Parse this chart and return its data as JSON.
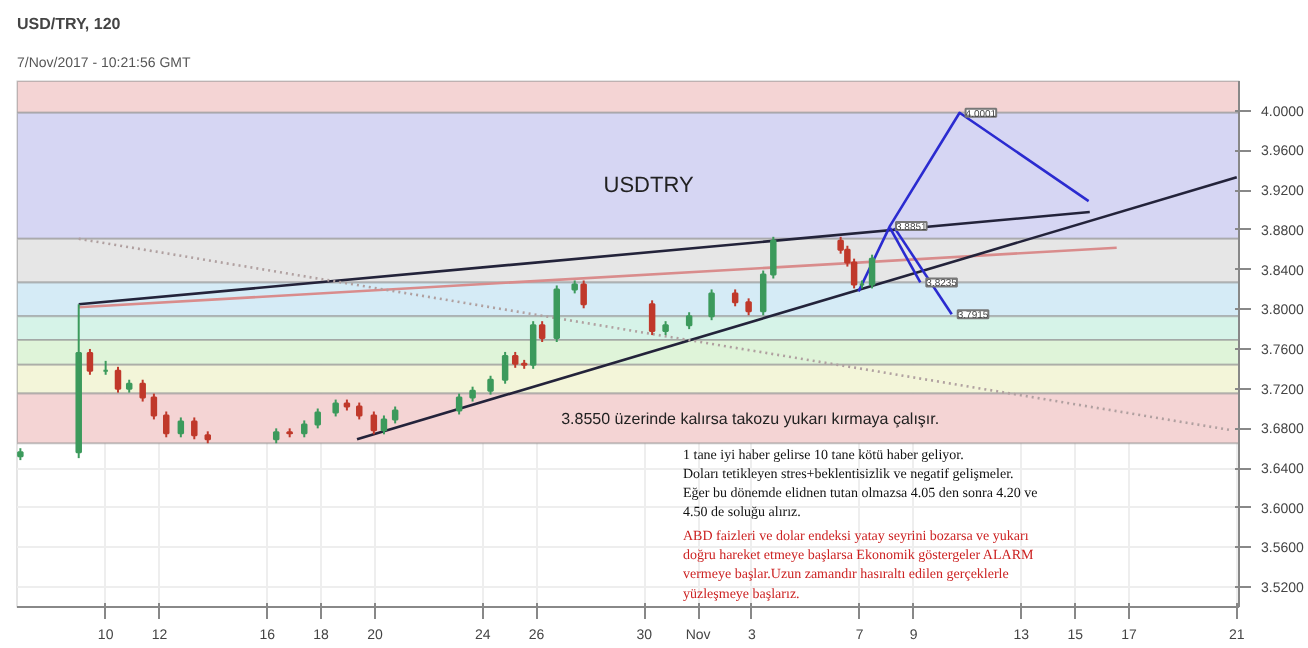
{
  "chart_data": {
    "type": "candlestick",
    "title": "USD/TRY, 120",
    "subtitle": "7/Nov/2017 - 10:21:56 GMT",
    "x": [
      "2017-10-06T20:00",
      "2017-10-09T00:00",
      "2017-10-09T10:00",
      "2017-10-10T00:00",
      "2017-10-10T11:00",
      "2017-10-10T21:00",
      "2017-10-11T09:00",
      "2017-10-11T19:00",
      "2017-10-12T06:00",
      "2017-10-12T19:00",
      "2017-10-13T07:00",
      "2017-10-13T19:00",
      "2017-10-16T08:00",
      "2017-10-16T20:00",
      "2017-10-17T09:00",
      "2017-10-17T21:00",
      "2017-10-18T13:00",
      "2017-10-18T23:00",
      "2017-10-19T10:00",
      "2017-10-19T23:00",
      "2017-10-20T08:00",
      "2017-10-20T18:00",
      "2017-10-23T03:00",
      "2017-10-23T15:00",
      "2017-10-24T07:00",
      "2017-10-24T20:00",
      "2017-10-25T05:00",
      "2017-10-25T13:00",
      "2017-10-25T21:00",
      "2017-10-26T05:00",
      "2017-10-26T18:00",
      "2017-10-27T10:00",
      "2017-10-27T18:00",
      "2017-10-30T07:00",
      "2017-10-30T19:00",
      "2017-10-31T16:00",
      "2017-11-01T12:00",
      "2017-11-02T09:00",
      "2017-11-02T21:00",
      "2017-11-03T10:00",
      "2017-11-03T19:00",
      "2017-11-06T07:00",
      "2017-11-06T13:00",
      "2017-11-06T19:00",
      "2017-11-07T02:00",
      "2017-11-07T11:00"
    ],
    "ohlc": [
      [
        3.652,
        3.66,
        3.648,
        3.656
      ],
      [
        3.656,
        3.805,
        3.65,
        3.756
      ],
      [
        3.756,
        3.76,
        3.734,
        3.738
      ],
      [
        3.738,
        3.748,
        3.734,
        3.738
      ],
      [
        3.738,
        3.742,
        3.716,
        3.72
      ],
      [
        3.72,
        3.729,
        3.716,
        3.725
      ],
      [
        3.725,
        3.729,
        3.707,
        3.711
      ],
      [
        3.711,
        3.715,
        3.689,
        3.693
      ],
      [
        3.693,
        3.697,
        3.671,
        3.675
      ],
      [
        3.675,
        3.691,
        3.671,
        3.687
      ],
      [
        3.687,
        3.691,
        3.669,
        3.673
      ],
      [
        3.673,
        3.677,
        3.665,
        3.669
      ],
      [
        3.669,
        3.68,
        3.665,
        3.676
      ],
      [
        3.676,
        3.68,
        3.671,
        3.675
      ],
      [
        3.675,
        3.688,
        3.671,
        3.684
      ],
      [
        3.684,
        3.7,
        3.68,
        3.696
      ],
      [
        3.696,
        3.709,
        3.692,
        3.705
      ],
      [
        3.705,
        3.709,
        3.698,
        3.702
      ],
      [
        3.702,
        3.706,
        3.689,
        3.693
      ],
      [
        3.693,
        3.697,
        3.674,
        3.678
      ],
      [
        3.678,
        3.693,
        3.674,
        3.689
      ],
      [
        3.689,
        3.702,
        3.685,
        3.698
      ],
      [
        3.698,
        3.715,
        3.694,
        3.711
      ],
      [
        3.711,
        3.722,
        3.707,
        3.718
      ],
      [
        3.718,
        3.733,
        3.714,
        3.729
      ],
      [
        3.729,
        3.757,
        3.725,
        3.753
      ],
      [
        3.753,
        3.757,
        3.741,
        3.745
      ],
      [
        3.745,
        3.749,
        3.74,
        3.744
      ],
      [
        3.744,
        3.788,
        3.74,
        3.784
      ],
      [
        3.784,
        3.788,
        3.767,
        3.771
      ],
      [
        3.771,
        3.824,
        3.767,
        3.82
      ],
      [
        3.82,
        3.829,
        3.816,
        3.825
      ],
      [
        3.825,
        3.829,
        3.801,
        3.805
      ],
      [
        3.805,
        3.809,
        3.774,
        3.778
      ],
      [
        3.778,
        3.788,
        3.774,
        3.784
      ],
      [
        3.784,
        3.797,
        3.78,
        3.793
      ],
      [
        3.793,
        3.82,
        3.789,
        3.816
      ],
      [
        3.816,
        3.82,
        3.803,
        3.807
      ],
      [
        3.807,
        3.811,
        3.794,
        3.798
      ],
      [
        3.798,
        3.839,
        3.794,
        3.835
      ],
      [
        3.835,
        3.873,
        3.831,
        3.869
      ],
      [
        3.869,
        3.873,
        3.856,
        3.86
      ],
      [
        3.86,
        3.864,
        3.843,
        3.847
      ],
      [
        3.847,
        3.851,
        3.821,
        3.825
      ],
      [
        3.825,
        3.829,
        3.821,
        3.825
      ],
      [
        3.825,
        3.855,
        3.821,
        3.851
      ]
    ],
    "series": [
      {
        "type": "line",
        "color": "#23233a",
        "x": [
          "2017-10-09T00:00",
          "2017-11-15T13:00"
        ],
        "values": [
          3.805,
          3.898
        ]
      },
      {
        "type": "line",
        "color": "#d98c8c",
        "x": [
          "2017-10-09T00:00",
          "2017-11-16T13:00"
        ],
        "values": [
          3.802,
          3.862
        ]
      },
      {
        "type": "line",
        "color": "#23233a",
        "x": [
          "2017-10-19T08:00",
          "2017-11-21T00:00"
        ],
        "values": [
          3.669,
          3.933
        ]
      },
      {
        "type": "line",
        "color": "#b0a0a0",
        "line_style": "dotted",
        "x": [
          "2017-10-09T00:00",
          "2017-11-20T20:00"
        ],
        "values": [
          3.871,
          3.678
        ]
      },
      {
        "type": "line",
        "color": "#2b2bd0",
        "x": [
          "2017-11-06T23:00",
          "2017-11-08T03:00",
          "2017-11-10T17:00",
          "2017-11-15T12:00"
        ],
        "values": [
          3.818,
          3.884,
          3.998,
          3.909
        ]
      },
      {
        "type": "line",
        "color": "#2b2bd0",
        "x": [
          "2017-11-08T03:00",
          "2017-11-09T06:00"
        ],
        "values": [
          3.882,
          3.827
        ]
      },
      {
        "type": "line",
        "color": "#2b2bd0",
        "x": [
          "2017-11-08T07:00",
          "2017-11-10T10:00"
        ],
        "values": [
          3.882,
          3.795
        ]
      }
    ],
    "bands": [
      {
        "axis": "y",
        "from": 3.998,
        "to": 4.03,
        "color": "#f4d4d4"
      },
      {
        "axis": "y",
        "from": 3.871,
        "to": 3.998,
        "color": "#d6d6f3"
      },
      {
        "axis": "y",
        "from": 3.827,
        "to": 3.871,
        "color": "#e6e6e6"
      },
      {
        "axis": "y",
        "from": 3.793,
        "to": 3.827,
        "color": "#d5ebf6"
      },
      {
        "axis": "y",
        "from": 3.769,
        "to": 3.793,
        "color": "#d6f3e8"
      },
      {
        "axis": "y",
        "from": 3.744,
        "to": 3.769,
        "color": "#dff4d9"
      },
      {
        "axis": "y",
        "from": 3.715,
        "to": 3.744,
        "color": "#f3f5d9"
      },
      {
        "axis": "y",
        "from": 3.665,
        "to": 3.715,
        "color": "#f4d4d4"
      }
    ],
    "annotations": [
      "USDTRY",
      "3.8550 üzerinde kalırsa takozu yukarı kırmaya çalışır.",
      "1 tane iyi haber gelirse 10 tane kötü haber geliyor.\nDoları tetikleyen stres+beklentisizlik ve negatif gelişmeler.\nEğer bu dönemde elidnen tutan olmazsa 4.05 den sonra 4.20 ve\n4.50 de soluğu alırız.",
      "ABD faizleri ve dolar endeksi yatay seyrini bozarsa ve yukarı\ndoğru hareket etmeye başlarsa Ekonomik göstergeler ALARM\nvermeye başlar.Uzun zamandır hasıraltı edilen gerçeklerle\nyüzleşmeye başlarız.",
      {
        "text": "4.0001",
        "x": "2017-11-10T17:00",
        "y": 3.998
      },
      {
        "text": "3.8851",
        "x": "2017-11-08T03:00",
        "y": 3.884
      },
      {
        "text": "3.8235",
        "x": "2017-11-09T06:00",
        "y": 3.827
      },
      {
        "text": "3.7915",
        "x": "2017-11-10T10:00",
        "y": 3.795
      }
    ],
    "xlim": [
      "2017-10-06T17:00",
      "2017-11-21T02:00"
    ],
    "ylim": [
      3.5,
      4.03
    ],
    "xticks": [
      {
        "value": "2017-10-10",
        "label": "10"
      },
      {
        "value": "2017-10-12",
        "label": "12"
      },
      {
        "value": "2017-10-16",
        "label": "16"
      },
      {
        "value": "2017-10-18",
        "label": "18"
      },
      {
        "value": "2017-10-20",
        "label": "20"
      },
      {
        "value": "2017-10-24",
        "label": "24"
      },
      {
        "value": "2017-10-26",
        "label": "26"
      },
      {
        "value": "2017-10-30",
        "label": "30"
      },
      {
        "value": "2017-11-01",
        "label": "Nov"
      },
      {
        "value": "2017-11-03",
        "label": "3"
      },
      {
        "value": "2017-11-07",
        "label": "7"
      },
      {
        "value": "2017-11-09",
        "label": "9"
      },
      {
        "value": "2017-11-13",
        "label": "13"
      },
      {
        "value": "2017-11-15",
        "label": "15"
      },
      {
        "value": "2017-11-17",
        "label": "17"
      },
      {
        "value": "2017-11-21",
        "label": "21"
      }
    ],
    "yticks": [
      {
        "value": 3.52,
        "label": "3.5200"
      },
      {
        "value": 3.56,
        "label": "3.5600"
      },
      {
        "value": 3.6,
        "label": "3.6000"
      },
      {
        "value": 3.64,
        "label": "3.6400"
      },
      {
        "value": 3.68,
        "label": "3.6800"
      },
      {
        "value": 3.72,
        "label": "3.7200"
      },
      {
        "value": 3.76,
        "label": "3.7600"
      },
      {
        "value": 3.8,
        "label": "3.8000"
      },
      {
        "value": 3.84,
        "label": "3.8400"
      },
      {
        "value": 3.88,
        "label": "3.8800"
      },
      {
        "value": 3.92,
        "label": "3.9200"
      },
      {
        "value": 3.96,
        "label": "3.9600"
      },
      {
        "value": 4.0,
        "label": "4.0000"
      }
    ],
    "grid": true
  }
}
